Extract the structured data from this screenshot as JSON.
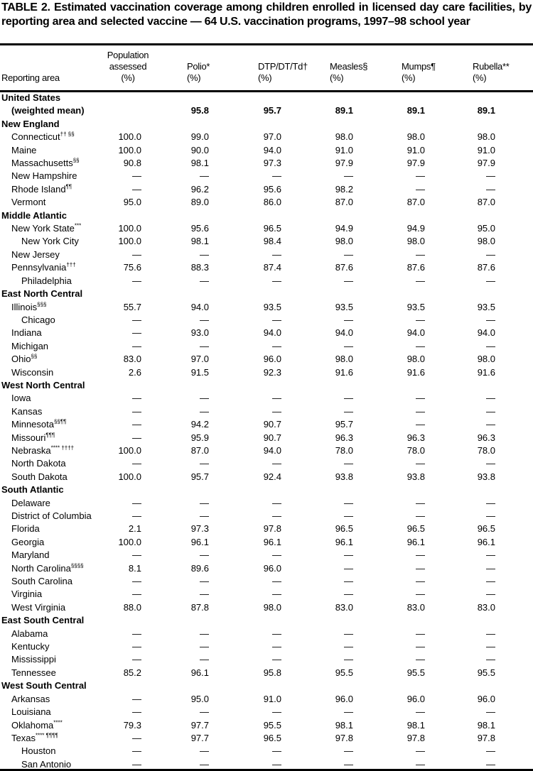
{
  "title": "TABLE 2. Estimated vaccination coverage among children enrolled in licensed day care facilities, by reporting area and selected vaccine — 64 U.S. vaccination programs, 1997–98 school year",
  "columns": [
    {
      "label": "Reporting area",
      "unit": ""
    },
    {
      "label": "Population assessed",
      "unit": "(%)"
    },
    {
      "label": "Polio*",
      "unit": "(%)"
    },
    {
      "label": "DTP/DT/Td†",
      "unit": "(%)"
    },
    {
      "label": "Measles§",
      "unit": "(%)"
    },
    {
      "label": "Mumps¶",
      "unit": "(%)"
    },
    {
      "label": "Rubella**",
      "unit": "(%)"
    }
  ],
  "rows": [
    {
      "name": "United States",
      "type": "region",
      "indent": 0,
      "values": [
        "",
        "",
        "",
        "",
        "",
        ""
      ]
    },
    {
      "name": "(weighted mean)",
      "type": "bold",
      "indent": 1,
      "values": [
        "",
        "95.8",
        "95.7",
        "89.1",
        "89.1",
        "89.1"
      ]
    },
    {
      "name": "New England",
      "type": "region",
      "indent": 0,
      "values": [
        "",
        "",
        "",
        "",
        "",
        ""
      ]
    },
    {
      "name": "Connecticut",
      "note": "†† §§",
      "indent": 1,
      "values": [
        "100.0",
        "99.0",
        "97.0",
        "98.0",
        "98.0",
        "98.0"
      ]
    },
    {
      "name": "Maine",
      "indent": 1,
      "values": [
        "100.0",
        "90.0",
        "94.0",
        "91.0",
        "91.0",
        "91.0"
      ]
    },
    {
      "name": "Massachusetts",
      "note": "§§",
      "indent": 1,
      "values": [
        "90.8",
        "98.1",
        "97.3",
        "97.9",
        "97.9",
        "97.9"
      ]
    },
    {
      "name": "New Hampshire",
      "indent": 1,
      "values": [
        "—",
        "—",
        "—",
        "—",
        "—",
        "—"
      ]
    },
    {
      "name": "Rhode Island",
      "note": "¶¶",
      "indent": 1,
      "values": [
        "—",
        "96.2",
        "95.6",
        "98.2",
        "—",
        "—"
      ]
    },
    {
      "name": "Vermont",
      "indent": 1,
      "values": [
        "95.0",
        "89.0",
        "86.0",
        "87.0",
        "87.0",
        "87.0"
      ]
    },
    {
      "name": "Middle Atlantic",
      "type": "region",
      "indent": 0,
      "values": [
        "",
        "",
        "",
        "",
        "",
        ""
      ]
    },
    {
      "name": "New York State",
      "note": "***",
      "indent": 1,
      "values": [
        "100.0",
        "95.6",
        "96.5",
        "94.9",
        "94.9",
        "95.0"
      ]
    },
    {
      "name": "New York City",
      "indent": 2,
      "values": [
        "100.0",
        "98.1",
        "98.4",
        "98.0",
        "98.0",
        "98.0"
      ]
    },
    {
      "name": "New Jersey",
      "indent": 1,
      "values": [
        "—",
        "—",
        "—",
        "—",
        "—",
        "—"
      ]
    },
    {
      "name": "Pennsylvania",
      "note": "†††",
      "indent": 1,
      "values": [
        "75.6",
        "88.3",
        "87.4",
        "87.6",
        "87.6",
        "87.6"
      ]
    },
    {
      "name": "Philadelphia",
      "indent": 2,
      "values": [
        "—",
        "—",
        "—",
        "—",
        "—",
        "—"
      ]
    },
    {
      "name": "East North Central",
      "type": "region",
      "indent": 0,
      "values": [
        "",
        "",
        "",
        "",
        "",
        ""
      ]
    },
    {
      "name": "Illinois",
      "note": "§§§",
      "indent": 1,
      "values": [
        "55.7",
        "94.0",
        "93.5",
        "93.5",
        "93.5",
        "93.5"
      ]
    },
    {
      "name": "Chicago",
      "indent": 2,
      "values": [
        "—",
        "—",
        "—",
        "—",
        "—",
        "—"
      ]
    },
    {
      "name": "Indiana",
      "indent": 1,
      "values": [
        "—",
        "93.0",
        "94.0",
        "94.0",
        "94.0",
        "94.0"
      ]
    },
    {
      "name": "Michigan",
      "indent": 1,
      "values": [
        "—",
        "—",
        "—",
        "—",
        "—",
        "—"
      ]
    },
    {
      "name": "Ohio",
      "note": "§§",
      "indent": 1,
      "values": [
        "83.0",
        "97.0",
        "96.0",
        "98.0",
        "98.0",
        "98.0"
      ]
    },
    {
      "name": "Wisconsin",
      "indent": 1,
      "values": [
        "2.6",
        "91.5",
        "92.3",
        "91.6",
        "91.6",
        "91.6"
      ]
    },
    {
      "name": "West North Central",
      "type": "region",
      "indent": 0,
      "values": [
        "",
        "",
        "",
        "",
        "",
        ""
      ]
    },
    {
      "name": "Iowa",
      "indent": 1,
      "values": [
        "—",
        "—",
        "—",
        "—",
        "—",
        "—"
      ]
    },
    {
      "name": "Kansas",
      "indent": 1,
      "values": [
        "—",
        "—",
        "—",
        "—",
        "—",
        "—"
      ]
    },
    {
      "name": "Minnesota",
      "note": "§§¶¶",
      "indent": 1,
      "values": [
        "—",
        "94.2",
        "90.7",
        "95.7",
        "—",
        "—"
      ]
    },
    {
      "name": "Missouri",
      "note": "¶¶¶",
      "indent": 1,
      "values": [
        "—",
        "95.9",
        "90.7",
        "96.3",
        "96.3",
        "96.3"
      ]
    },
    {
      "name": "Nebraska",
      "note": "**** ††††",
      "indent": 1,
      "values": [
        "100.0",
        "87.0",
        "94.0",
        "78.0",
        "78.0",
        "78.0"
      ]
    },
    {
      "name": "North Dakota",
      "indent": 1,
      "values": [
        "—",
        "—",
        "—",
        "—",
        "—",
        "—"
      ]
    },
    {
      "name": "South Dakota",
      "indent": 1,
      "values": [
        "100.0",
        "95.7",
        "92.4",
        "93.8",
        "93.8",
        "93.8"
      ]
    },
    {
      "name": "South Atlantic",
      "type": "region",
      "indent": 0,
      "values": [
        "",
        "",
        "",
        "",
        "",
        ""
      ]
    },
    {
      "name": "Delaware",
      "indent": 1,
      "values": [
        "—",
        "—",
        "—",
        "—",
        "—",
        "—"
      ]
    },
    {
      "name": "District of Columbia",
      "indent": 1,
      "values": [
        "—",
        "—",
        "—",
        "—",
        "—",
        "—"
      ]
    },
    {
      "name": "Florida",
      "indent": 1,
      "values": [
        "2.1",
        "97.3",
        "97.8",
        "96.5",
        "96.5",
        "96.5"
      ]
    },
    {
      "name": "Georgia",
      "indent": 1,
      "values": [
        "100.0",
        "96.1",
        "96.1",
        "96.1",
        "96.1",
        "96.1"
      ]
    },
    {
      "name": "Maryland",
      "indent": 1,
      "values": [
        "—",
        "—",
        "—",
        "—",
        "—",
        "—"
      ]
    },
    {
      "name": "North Carolina",
      "note": "§§§§",
      "indent": 1,
      "values": [
        "8.1",
        "89.6",
        "96.0",
        "—",
        "—",
        "—"
      ]
    },
    {
      "name": "South Carolina",
      "indent": 1,
      "values": [
        "—",
        "—",
        "—",
        "—",
        "—",
        "—"
      ]
    },
    {
      "name": "Virginia",
      "indent": 1,
      "values": [
        "—",
        "—",
        "—",
        "—",
        "—",
        "—"
      ]
    },
    {
      "name": "West Virginia",
      "indent": 1,
      "values": [
        "88.0",
        "87.8",
        "98.0",
        "83.0",
        "83.0",
        "83.0"
      ]
    },
    {
      "name": "East South Central",
      "type": "region",
      "indent": 0,
      "values": [
        "",
        "",
        "",
        "",
        "",
        ""
      ]
    },
    {
      "name": "Alabama",
      "indent": 1,
      "values": [
        "—",
        "—",
        "—",
        "—",
        "—",
        "—"
      ]
    },
    {
      "name": "Kentucky",
      "indent": 1,
      "values": [
        "—",
        "—",
        "—",
        "—",
        "—",
        "—"
      ]
    },
    {
      "name": "Mississippi",
      "indent": 1,
      "values": [
        "—",
        "—",
        "—",
        "—",
        "—",
        "—"
      ]
    },
    {
      "name": "Tennessee",
      "indent": 1,
      "values": [
        "85.2",
        "96.1",
        "95.8",
        "95.5",
        "95.5",
        "95.5"
      ]
    },
    {
      "name": "West South Central",
      "type": "region",
      "indent": 0,
      "values": [
        "",
        "",
        "",
        "",
        "",
        ""
      ]
    },
    {
      "name": "Arkansas",
      "indent": 1,
      "values": [
        "—",
        "95.0",
        "91.0",
        "96.0",
        "96.0",
        "96.0"
      ]
    },
    {
      "name": "Louisiana",
      "indent": 1,
      "values": [
        "—",
        "—",
        "—",
        "—",
        "—",
        "—"
      ]
    },
    {
      "name": "Oklahoma",
      "note": "****",
      "indent": 1,
      "values": [
        "79.3",
        "97.7",
        "95.5",
        "98.1",
        "98.1",
        "98.1"
      ]
    },
    {
      "name": "Texas",
      "note": "**** ¶¶¶¶",
      "indent": 1,
      "values": [
        "—",
        "97.7",
        "96.5",
        "97.8",
        "97.8",
        "97.8"
      ]
    },
    {
      "name": "Houston",
      "indent": 2,
      "values": [
        "—",
        "—",
        "—",
        "—",
        "—",
        "—"
      ]
    },
    {
      "name": "San Antonio",
      "indent": 2,
      "values": [
        "—",
        "—",
        "—",
        "—",
        "—",
        "—"
      ]
    }
  ]
}
